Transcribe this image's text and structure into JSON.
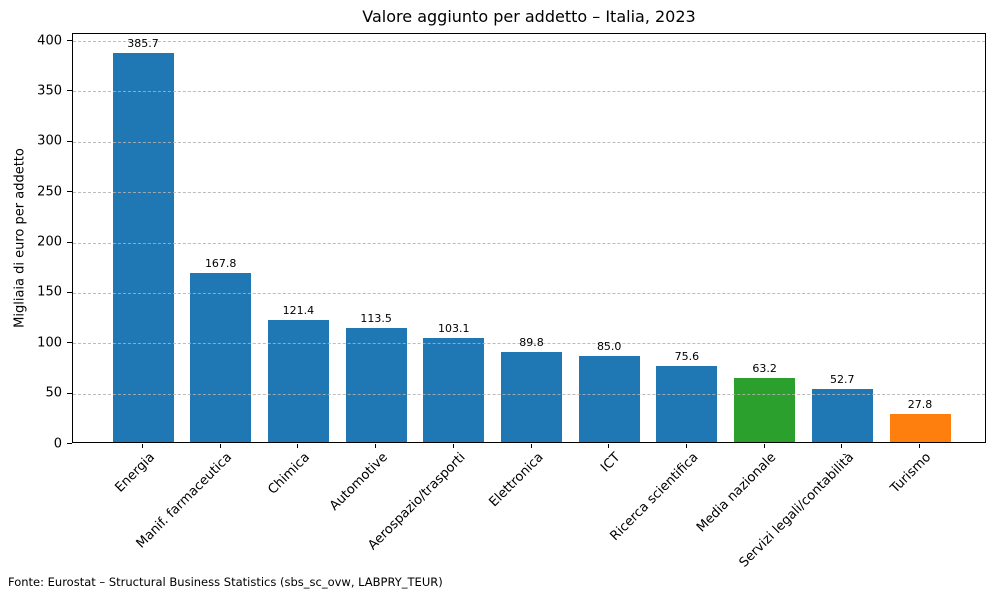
{
  "chart_data": {
    "type": "bar",
    "title": "Valore aggiunto per addetto – Italia, 2023",
    "xlabel": "",
    "ylabel": "Migliaia di euro per addetto",
    "categories": [
      "Energia",
      "Manif. farmaceutica",
      "Chimica",
      "Automotive",
      "Aerospazio/trasporti",
      "Elettronica",
      "ICT",
      "Ricerca scientifica",
      "Media nazionale",
      "Servizi legali/contabilità",
      "Turismo"
    ],
    "values": [
      385.7,
      167.8,
      121.4,
      113.5,
      103.1,
      89.8,
      85.0,
      75.6,
      63.2,
      52.7,
      27.8
    ],
    "value_labels": [
      "385.7",
      "167.8",
      "121.4",
      "113.5",
      "103.1",
      "89.8",
      "85.0",
      "75.6",
      "63.2",
      "52.7",
      "27.8"
    ],
    "bar_colors": [
      "#1f77b4",
      "#1f77b4",
      "#1f77b4",
      "#1f77b4",
      "#1f77b4",
      "#1f77b4",
      "#1f77b4",
      "#1f77b4",
      "#2ca02c",
      "#1f77b4",
      "#ff7f0e"
    ],
    "yticks": [
      0,
      50,
      100,
      150,
      200,
      250,
      300,
      350,
      400
    ],
    "ylim": [
      0,
      407
    ],
    "grid": "horizontal dashed, drawn above bars",
    "legend": "none",
    "source_note": "Fonte: Eurostat – Structural Business Statistics (sbs_sc_ovw, LABPRY_TEUR)"
  },
  "colors": {
    "bar_default": "#1f77b4",
    "bar_media_nazionale": "#2ca02c",
    "bar_turismo": "#ff7f0e",
    "grid": "#b0b0b0",
    "spine": "#000000",
    "text": "#000000",
    "background": "#ffffff"
  }
}
